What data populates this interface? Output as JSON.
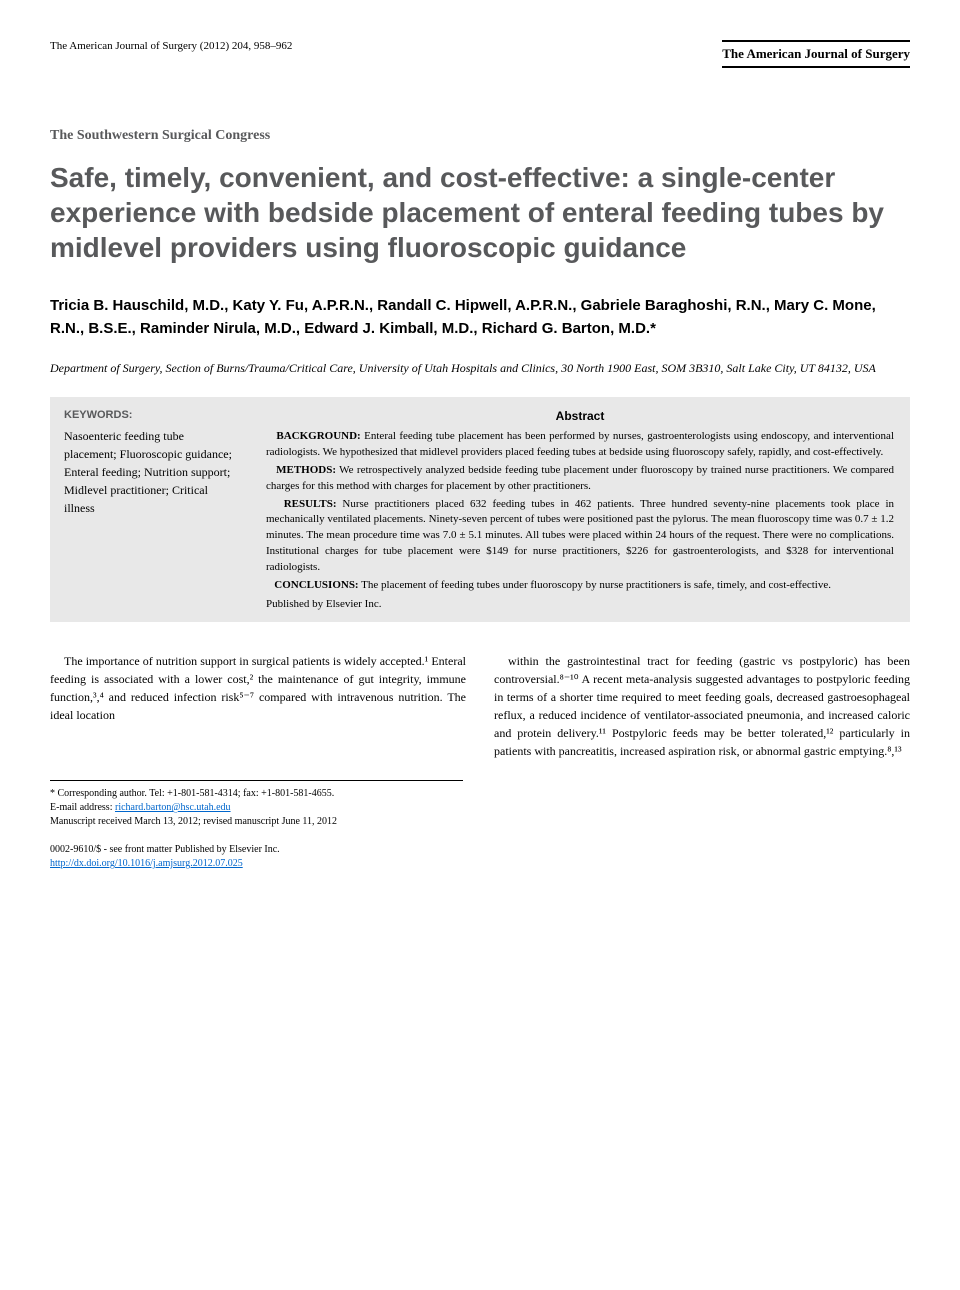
{
  "header": {
    "journal_ref": "The American Journal of Surgery (2012) 204, 958–962",
    "brand_name": "The American Journal of Surgery"
  },
  "section_name": "The Southwestern Surgical Congress",
  "title": "Safe, timely, convenient, and cost-effective: a single-center experience with bedside placement of enteral feeding tubes by midlevel providers using fluoroscopic guidance",
  "authors": "Tricia B. Hauschild, M.D., Katy Y. Fu, A.P.R.N., Randall C. Hipwell, A.P.R.N., Gabriele Baraghoshi, R.N., Mary C. Mone, R.N., B.S.E., Raminder Nirula, M.D., Edward J. Kimball, M.D., Richard G. Barton, M.D.*",
  "affiliation": "Department of Surgery, Section of Burns/Trauma/Critical Care, University of Utah Hospitals and Clinics, 30 North 1900 East, SOM 3B310, Salt Lake City, UT 84132, USA",
  "keywords": {
    "heading": "KEYWORDS:",
    "list": "Nasoenteric feeding tube placement; Fluoroscopic guidance; Enteral feeding; Nutrition support; Midlevel practitioner; Critical illness"
  },
  "abstract": {
    "heading": "Abstract",
    "background_label": "BACKGROUND:",
    "background": "Enteral feeding tube placement has been performed by nurses, gastroenterologists using endoscopy, and interventional radiologists. We hypothesized that midlevel providers placed feeding tubes at bedside using fluoroscopy safely, rapidly, and cost-effectively.",
    "methods_label": "METHODS:",
    "methods": "We retrospectively analyzed bedside feeding tube placement under fluoroscopy by trained nurse practitioners. We compared charges for this method with charges for placement by other practitioners.",
    "results_label": "RESULTS:",
    "results": "Nurse practitioners placed 632 feeding tubes in 462 patients. Three hundred seventy-nine placements took place in mechanically ventilated placements. Ninety-seven percent of tubes were positioned past the pylorus. The mean fluoroscopy time was 0.7 ± 1.2 minutes. The mean procedure time was 7.0 ± 5.1 minutes. All tubes were placed within 24 hours of the request. There were no complications. Institutional charges for tube placement were $149 for nurse practitioners, $226 for gastroenterologists, and $328 for interventional radiologists.",
    "conclusions_label": "CONCLUSIONS:",
    "conclusions": "The placement of feeding tubes under fluoroscopy by nurse practitioners is safe, timely, and cost-effective.",
    "publisher": "Published by Elsevier Inc."
  },
  "body": {
    "col1": "The importance of nutrition support in surgical patients is widely accepted.¹ Enteral feeding is associated with a lower cost,² the maintenance of gut integrity, immune function,³,⁴ and reduced infection risk⁵⁻⁷ compared with intravenous nutrition. The ideal location",
    "col2": "within the gastrointestinal tract for feeding (gastric vs postpyloric) has been controversial.⁸⁻¹⁰ A recent meta-analysis suggested advantages to postpyloric feeding in terms of a shorter time required to meet feeding goals, decreased gastroesophageal reflux, a reduced incidence of ventilator-associated pneumonia, and increased caloric and protein delivery.¹¹ Postpyloric feeds may be better tolerated,¹² particularly in patients with pancreatitis, increased aspiration risk, or abnormal gastric emptying.⁸,¹³"
  },
  "footnotes": {
    "corresponding": "* Corresponding author. Tel: +1-801-581-4314; fax: +1-801-581-4655.",
    "email_label": "E-mail address:",
    "email": "richard.barton@hsc.utah.edu",
    "manuscript": "Manuscript received March 13, 2012; revised manuscript June 11, 2012"
  },
  "footer": {
    "copyright": "0002-9610/$ - see front matter Published by Elsevier Inc.",
    "doi": "http://dx.doi.org/10.1016/j.amjsurg.2012.07.025"
  },
  "colors": {
    "gray_heading": "#58595b",
    "box_bg": "#e8e8e8",
    "link": "#0066cc"
  }
}
